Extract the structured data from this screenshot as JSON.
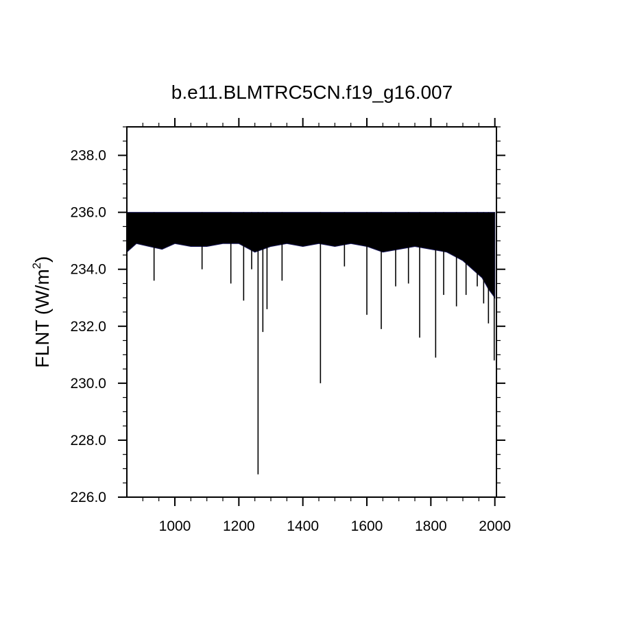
{
  "chart_data": {
    "type": "bar",
    "title": "b.e11.BLMTRC5CN.f19_g16.007",
    "ylabel": "FLNT (W/m",
    "ylabel_superscript": "2",
    "ylabel_close": ")",
    "xlabel": "",
    "xlim": [
      850,
      2005
    ],
    "ylim": [
      226,
      239
    ],
    "baseline": 236.0,
    "x_ticks": [
      1000,
      1200,
      1400,
      1600,
      1800,
      2000
    ],
    "x_tick_labels": [
      "1000",
      "1200",
      "1400",
      "1600",
      "1800",
      "2000"
    ],
    "y_ticks": [
      226,
      228,
      230,
      232,
      234,
      236,
      238
    ],
    "y_tick_labels": [
      "226.0",
      "228.0",
      "230.0",
      "232.0",
      "234.0",
      "236.0",
      "238.0"
    ],
    "grid": false,
    "legend": "none",
    "series_color": "#000000",
    "edge_color": "#1a1a5e",
    "envelope": {
      "x": [
        850,
        880,
        920,
        960,
        1000,
        1050,
        1100,
        1150,
        1200,
        1250,
        1300,
        1350,
        1400,
        1450,
        1500,
        1550,
        1600,
        1650,
        1700,
        1750,
        1800,
        1850,
        1900,
        1930,
        1960,
        1980,
        2000
      ],
      "y": [
        234.6,
        234.9,
        234.8,
        234.7,
        234.9,
        234.8,
        234.8,
        234.9,
        234.9,
        234.6,
        234.8,
        234.9,
        234.8,
        234.9,
        234.8,
        234.9,
        234.8,
        234.6,
        234.7,
        234.8,
        234.7,
        234.6,
        234.3,
        234.0,
        233.7,
        233.3,
        233.0
      ]
    },
    "dips": [
      {
        "x": 935,
        "y": 233.6
      },
      {
        "x": 1085,
        "y": 234.0
      },
      {
        "x": 1175,
        "y": 233.5
      },
      {
        "x": 1215,
        "y": 232.9
      },
      {
        "x": 1240,
        "y": 234.0
      },
      {
        "x": 1260,
        "y": 226.8
      },
      {
        "x": 1275,
        "y": 231.8
      },
      {
        "x": 1288,
        "y": 232.6
      },
      {
        "x": 1335,
        "y": 233.6
      },
      {
        "x": 1455,
        "y": 230.0
      },
      {
        "x": 1530,
        "y": 234.1
      },
      {
        "x": 1600,
        "y": 232.4
      },
      {
        "x": 1645,
        "y": 231.9
      },
      {
        "x": 1690,
        "y": 233.4
      },
      {
        "x": 1730,
        "y": 233.5
      },
      {
        "x": 1765,
        "y": 231.6
      },
      {
        "x": 1815,
        "y": 230.9
      },
      {
        "x": 1840,
        "y": 233.1
      },
      {
        "x": 1880,
        "y": 232.7
      },
      {
        "x": 1910,
        "y": 233.1
      },
      {
        "x": 1945,
        "y": 233.4
      },
      {
        "x": 1965,
        "y": 232.8
      },
      {
        "x": 1980,
        "y": 232.1
      },
      {
        "x": 1998,
        "y": 230.8
      }
    ]
  }
}
